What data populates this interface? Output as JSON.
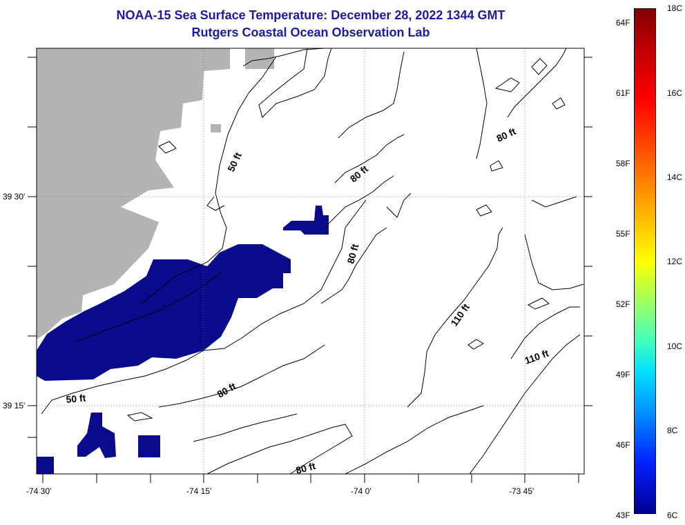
{
  "header": {
    "title": "NOAA-15 Sea Surface Temperature:  December 28, 2022 1344 GMT",
    "subtitle": "Rutgers Coastal Ocean Observation Lab"
  },
  "map": {
    "lat_labels": [
      "39 30'",
      "39 15'"
    ],
    "lon_labels": [
      "-74 30'",
      "-74 15'",
      "-74 0'",
      "-73 45'"
    ],
    "contour_labels": [
      "50 ft",
      "80 ft",
      "110 ft"
    ],
    "colors": {
      "land": "#b4b4b4",
      "cold_water": "#0a0a8c",
      "frame": "#000000"
    }
  },
  "colorbar": {
    "fahrenheit_labels": [
      "64F",
      "61F",
      "58F",
      "55F",
      "52F",
      "49F",
      "46F",
      "43F"
    ],
    "celsius_labels": [
      "18C",
      "16C",
      "14C",
      "12C",
      "10C",
      "8C",
      "6C"
    ]
  }
}
